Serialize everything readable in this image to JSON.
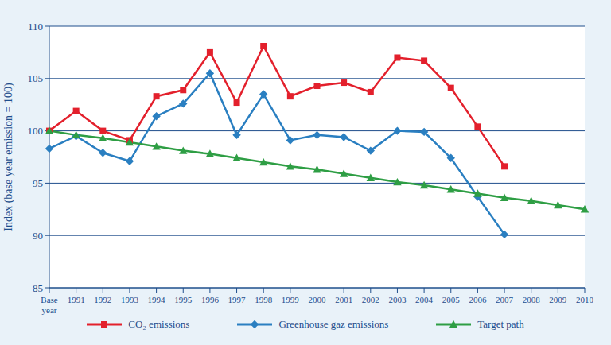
{
  "chart_data": {
    "type": "line",
    "y_label": "Index (base year emission = 100)",
    "categories": [
      "Base year",
      "1991",
      "1992",
      "1993",
      "1994",
      "1995",
      "1996",
      "1997",
      "1998",
      "1999",
      "2000",
      "2001",
      "2002",
      "2003",
      "2004",
      "2005",
      "2006",
      "2007",
      "2008",
      "2009",
      "2010"
    ],
    "series": [
      {
        "name": "CO₂ emissions",
        "color": "#e3202c",
        "marker": "square",
        "values": [
          100,
          101.9,
          100,
          99.1,
          103.3,
          103.9,
          107.5,
          102.7,
          108.1,
          103.3,
          104.3,
          104.6,
          103.7,
          107,
          106.7,
          104.1,
          100.4,
          96.6,
          null,
          null,
          null
        ]
      },
      {
        "name": "Greenhouse gaz emissions",
        "color": "#2a7fc1",
        "marker": "diamond",
        "values": [
          98.3,
          99.5,
          97.9,
          97.1,
          101.4,
          102.6,
          105.5,
          99.6,
          103.5,
          99.1,
          99.6,
          99.4,
          98.1,
          100,
          99.9,
          97.4,
          93.7,
          90.1,
          null,
          null,
          null
        ]
      },
      {
        "name": "Target path",
        "color": "#2e9e44",
        "marker": "triangle",
        "values": [
          100,
          99.6,
          99.3,
          98.9,
          98.5,
          98.1,
          97.8,
          97.4,
          97.0,
          96.6,
          96.3,
          95.9,
          95.5,
          95.1,
          94.8,
          94.4,
          94.0,
          93.6,
          93.3,
          92.9,
          92.5
        ]
      }
    ],
    "ylim": [
      85,
      110
    ],
    "yticks": [
      85,
      90,
      95,
      100,
      105,
      110
    ],
    "grid": true,
    "legend": "bottom"
  }
}
